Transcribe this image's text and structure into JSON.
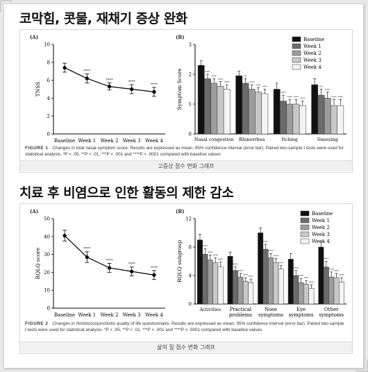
{
  "section1": {
    "heading": "코막힘, 콧물, 재채기 증상 완화",
    "panel_a_label": "(A)",
    "panel_b_label": "(B)",
    "caption_label": "FIGURE 1",
    "caption_text": "Changes in total nasal symptom score. Results are expressed as mean, 95% confidence interval (error bar). Paired two-sample t tests were used for statistical analysis. *P < .05, **P < .01, ***P < .001 and ****P < .0001 compared with baseline values",
    "subtitle": "고증상 점수 변화 그래프"
  },
  "section2": {
    "heading": "치료 후 비염으로 인한 활동의 제한 감소",
    "panel_a_label": "(A)",
    "panel_b_label": "(B)",
    "caption_label": "FIGURE 2",
    "caption_text": "Changes in rhinitis/conjunctivitis quality of life questionnaire. Results are expressed as mean, 95% confidence interval (error bar). Paired two-sample t tests were used for statistical analysis. *P < .05, **P < .01, ***P < .001 and ****P < .0001 compared with baseline values",
    "subtitle": "삶의 질 점수 변화 그래프"
  },
  "chart_data": [
    {
      "id": "tnss",
      "type": "line",
      "ylabel": "TNSS",
      "categories": [
        "Baseline",
        "Week 1",
        "Week 2",
        "Week 3",
        "Week 4"
      ],
      "values": [
        7.4,
        6.2,
        5.3,
        5.0,
        4.7
      ],
      "errors": [
        0.5,
        0.5,
        0.4,
        0.5,
        0.5
      ],
      "significance": [
        "",
        "****",
        "****",
        "****",
        "****"
      ],
      "ylim": [
        0,
        10
      ],
      "yticks": [
        0,
        2,
        4,
        6,
        8,
        10
      ]
    },
    {
      "id": "symptom",
      "type": "bar",
      "ylabel": "Symptom Score",
      "categories": [
        "Nasal congestion",
        "Rhinorrhea",
        "Itching",
        "Sneezing"
      ],
      "legend_position": "top-right",
      "series": [
        {
          "name": "Baseline",
          "color": "#111111",
          "values": [
            2.3,
            1.95,
            1.5,
            1.65
          ],
          "errors": [
            0.15,
            0.15,
            0.2,
            0.2
          ],
          "sig": [
            "",
            "",
            "",
            ""
          ]
        },
        {
          "name": "Week 1",
          "color": "#6b6b6b",
          "values": [
            1.85,
            1.7,
            1.1,
            1.3
          ],
          "errors": [
            0.15,
            0.15,
            0.2,
            0.2
          ],
          "sig": [
            "****",
            "**",
            "****",
            "***"
          ]
        },
        {
          "name": "Week 2",
          "color": "#9c9c9c",
          "values": [
            1.7,
            1.5,
            1.0,
            1.2
          ],
          "errors": [
            0.15,
            0.15,
            0.15,
            0.2
          ],
          "sig": [
            "****",
            "****",
            "****",
            "****"
          ]
        },
        {
          "name": "Week 3",
          "color": "#c8c8c8",
          "values": [
            1.6,
            1.4,
            1.0,
            0.95
          ],
          "errors": [
            0.15,
            0.15,
            0.15,
            0.2
          ],
          "sig": [
            "****",
            "****",
            "****",
            "****"
          ]
        },
        {
          "name": "Week 4",
          "color": "#f4f4f4",
          "values": [
            1.5,
            1.35,
            0.95,
            0.95
          ],
          "errors": [
            0.15,
            0.15,
            0.15,
            0.2
          ],
          "sig": [
            "****",
            "****",
            "****",
            "****"
          ]
        }
      ],
      "ylim": [
        0,
        3
      ],
      "yticks": [
        0,
        1,
        2,
        3
      ]
    },
    {
      "id": "rqlq",
      "type": "line",
      "ylabel": "RQLQ score",
      "categories": [
        "Baseline",
        "Week 1",
        "Week 2",
        "Week 3",
        "Week 4"
      ],
      "values": [
        40.5,
        28.5,
        22.5,
        20.5,
        18.5
      ],
      "errors": [
        3,
        3,
        2.5,
        2.5,
        2.5
      ],
      "significance": [
        "",
        "****",
        "****",
        "****",
        "****"
      ],
      "ylim": [
        0,
        50
      ],
      "yticks": [
        0,
        10,
        20,
        30,
        40,
        50
      ]
    },
    {
      "id": "rqlq-sub",
      "type": "bar",
      "ylabel": "RQLQ subgroup",
      "categories": [
        "Activities",
        "Practical problems",
        "Nose symptoms",
        "Eye symptoms",
        "Other symptoms"
      ],
      "legend_position": "top-right",
      "series": [
        {
          "name": "Baseline",
          "color": "#111111",
          "values": [
            9.0,
            6.7,
            10.0,
            6.3,
            8.0
          ],
          "errors": [
            0.8,
            0.6,
            0.7,
            0.8,
            0.8
          ],
          "sig": [
            "",
            "",
            "",
            "",
            ""
          ]
        },
        {
          "name": "Week 1",
          "color": "#6b6b6b",
          "values": [
            7.0,
            4.7,
            7.7,
            4.0,
            5.2
          ],
          "errors": [
            0.8,
            0.5,
            0.7,
            0.7,
            0.8
          ],
          "sig": [
            "****",
            "****",
            "****",
            "****",
            "****"
          ]
        },
        {
          "name": "Week 2",
          "color": "#9c9c9c",
          "values": [
            6.2,
            3.8,
            6.5,
            3.0,
            3.8
          ],
          "errors": [
            0.7,
            0.5,
            0.6,
            0.6,
            0.7
          ],
          "sig": [
            "****",
            "****",
            "****",
            "****",
            "****"
          ]
        },
        {
          "name": "Week 3",
          "color": "#c8c8c8",
          "values": [
            5.8,
            3.2,
            5.8,
            2.8,
            3.7
          ],
          "errors": [
            0.7,
            0.5,
            0.6,
            0.5,
            0.6
          ],
          "sig": [
            "****",
            "****",
            "****",
            "****",
            "****"
          ]
        },
        {
          "name": "Week 4",
          "color": "#f4f4f4",
          "values": [
            5.2,
            3.0,
            4.9,
            2.2,
            3.1
          ],
          "errors": [
            0.7,
            0.5,
            0.5,
            0.5,
            0.6
          ],
          "sig": [
            "****",
            "****",
            "****",
            "****",
            "****"
          ]
        }
      ],
      "ylim": [
        0,
        12
      ],
      "yticks": [
        0,
        4,
        8,
        12
      ]
    }
  ]
}
